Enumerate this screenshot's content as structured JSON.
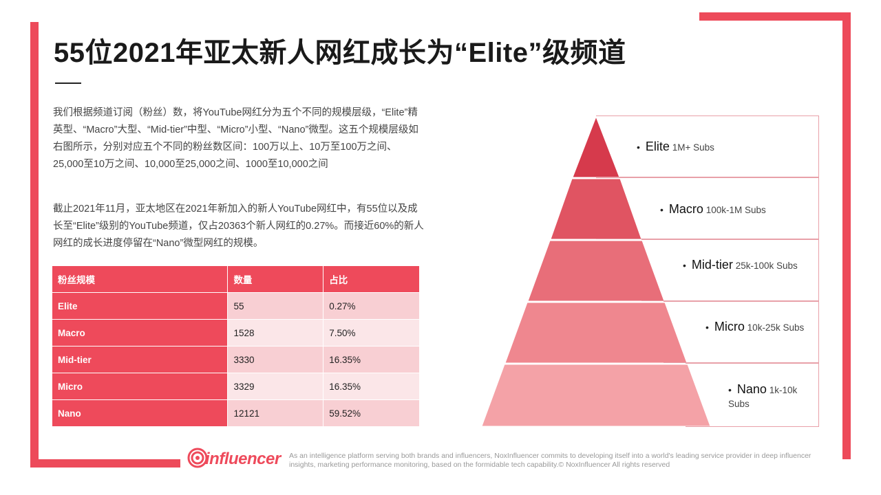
{
  "title": "55位2021年亚太新人网红成长为“Elite”级频道",
  "paragraphs": [
    "我们根据频道订阅（粉丝）数，将YouTube网红分为五个不同的规模层级，“Elite”精英型、“Macro”大型、“Mid-tier”中型、“Micro”小型、“Nano”微型。这五个规模层级如右图所示，分别对应五个不同的粉丝数区间：100万以上、10万至100万之间、25,000至10万之间、10,000至25,000之间、1000至10,000之间",
    "截止2021年11月，亚太地区在2021年新加入的新人YouTube网红中，有55位以及成长至“Elite”级别的YouTube频道，仅占20363个新人网红的0.27%。而接近60%的新人网红的成长进度停留在“Nano”微型网红的规模。"
  ],
  "table": {
    "headers": [
      "粉丝规模",
      "数量",
      "占比"
    ],
    "rows": [
      {
        "tier": "Elite",
        "count": "55",
        "share": "0.27%"
      },
      {
        "tier": "Macro",
        "count": "1528",
        "share": "7.50%"
      },
      {
        "tier": "Mid-tier",
        "count": "3330",
        "share": "16.35%"
      },
      {
        "tier": "Micro",
        "count": "3329",
        "share": "16.35%"
      },
      {
        "tier": "Nano",
        "count": "12121",
        "share": "59.52%"
      }
    ]
  },
  "pyramid": {
    "bullet": "•",
    "tiers": [
      {
        "name": "Elite",
        "range": "1M+ Subs",
        "color": "#d63a4c"
      },
      {
        "name": "Macro",
        "range": "100k-1M Subs",
        "color": "#e05462"
      },
      {
        "name": "Mid-tier",
        "range": "25k-100k Subs",
        "color": "#e86e79"
      },
      {
        "name": "Micro",
        "range": "10k-25k Subs",
        "color": "#ef878f"
      },
      {
        "name": "Nano",
        "range": "1k-10k Subs",
        "color": "#f4a2a7"
      }
    ]
  },
  "footer": {
    "logo_text": "influencer",
    "description": "As an intelligence platform serving both brands and influencers, NoxInfluencer commits to developing itself into a world's leading service provider in deep influencer insights, marketing performance monitoring, based on the formidable tech capability.© NoxInfluencer All rights reserved"
  },
  "colors": {
    "accent": "#ed4a5a",
    "row_light": "#fbe6e8",
    "row_mid": "#f8cfd3"
  }
}
